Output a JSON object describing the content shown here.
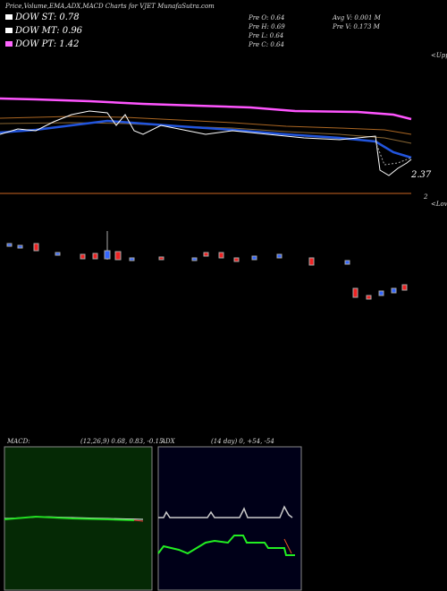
{
  "header": {
    "title": "Price,Volume,EMA,ADX,MACD Charts for VJET MunafaSutra.com"
  },
  "legend": [
    {
      "label": "DOW ST: 0.78",
      "color": "#ffffff"
    },
    {
      "label": "DOW MT: 0.96",
      "color": "#ffffff"
    },
    {
      "label": "DOW PT: 1.42",
      "color": "#ff66ff"
    }
  ],
  "info": {
    "open": "Pre  O: 0.64",
    "high": "Pre  H: 0.69",
    "low": "Pre  L: 0.64",
    "close": "Pre  C: 0.64",
    "avg_volume": "Avg V: 0.001 M",
    "pre_volume": "Pre  V: 0.173 M"
  },
  "price_panel": {
    "last_price": "2.37",
    "upper_label": "<Uppe",
    "lower_value": "2",
    "lower_label": "<Lowe"
  },
  "macd_panel": {
    "title": "MACD:",
    "params": "(12,26,9) 0.68, 0.83, -0.15"
  },
  "adx_panel": {
    "title": "ADX",
    "params": "(14  day) 0, +54, -54"
  }
}
